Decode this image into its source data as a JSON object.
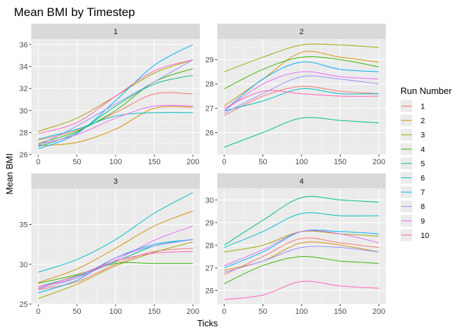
{
  "title": "Mean BMI by Timestep",
  "xlabel": "Ticks",
  "ylabel": "Mean BMI",
  "legend": {
    "title": "Run Number",
    "entries": [
      "1",
      "2",
      "3",
      "4",
      "5",
      "6",
      "7",
      "8",
      "9",
      "10"
    ],
    "colors": [
      "#F8766D",
      "#D89000",
      "#A3A500",
      "#39B600",
      "#00BF7D",
      "#00BFC4",
      "#00B0F6",
      "#9590FF",
      "#E76BF3",
      "#FF62BC"
    ]
  },
  "chart_data": {
    "type": "line",
    "facets": [
      {
        "label": "1",
        "xlim": [
          -9,
          209
        ],
        "ylim": [
          26,
          36.5
        ],
        "x_ticks": [
          "0",
          "50",
          "100",
          "150",
          "200"
        ],
        "y_ticks": [
          "26",
          "28",
          "30",
          "32",
          "34",
          "36"
        ],
        "x": [
          0,
          50,
          100,
          150,
          200
        ],
        "series": [
          {
            "values": [
              27.3,
              28.2,
              29.8,
              31.5,
              31.5
            ]
          },
          {
            "values": [
              26.8,
              27.1,
              28.3,
              30.2,
              30.3
            ]
          },
          {
            "values": [
              28.1,
              29.3,
              31.3,
              33.4,
              34.6
            ]
          },
          {
            "values": [
              27.0,
              28.1,
              30.0,
              32.6,
              33.8
            ]
          },
          {
            "values": [
              26.7,
              28.0,
              30.4,
              32.4,
              33.2
            ]
          },
          {
            "values": [
              27.4,
              28.3,
              29.5,
              29.8,
              29.8
            ]
          },
          {
            "values": [
              26.5,
              27.9,
              30.9,
              34.1,
              36.0
            ]
          },
          {
            "values": [
              26.8,
              28.6,
              30.6,
              32.6,
              34.6
            ]
          },
          {
            "values": [
              26.9,
              27.8,
              29.3,
              30.4,
              30.4
            ]
          },
          {
            "values": [
              27.9,
              28.9,
              31.3,
              33.6,
              34.6
            ]
          }
        ]
      },
      {
        "label": "2",
        "xlim": [
          -9,
          209
        ],
        "ylim": [
          25.1,
          29.85
        ],
        "x_ticks": [
          "0",
          "50",
          "100",
          "150",
          "200"
        ],
        "y_ticks": [
          "26",
          "27",
          "28",
          "29"
        ],
        "x": [
          0,
          50,
          100,
          150,
          200
        ],
        "series": [
          {
            "values": [
              26.7,
              27.5,
              27.9,
              27.7,
              27.6
            ]
          },
          {
            "values": [
              27.1,
              28.2,
              29.3,
              29.1,
              28.9
            ]
          },
          {
            "values": [
              28.5,
              29.1,
              29.6,
              29.6,
              29.5
            ]
          },
          {
            "values": [
              27.8,
              28.6,
              29.1,
              29.0,
              28.7
            ]
          },
          {
            "values": [
              25.4,
              26.0,
              26.6,
              26.5,
              26.4
            ]
          },
          {
            "values": [
              26.9,
              27.3,
              27.8,
              27.6,
              27.6
            ]
          },
          {
            "values": [
              26.9,
              28.2,
              28.9,
              28.6,
              28.5
            ]
          },
          {
            "values": [
              26.8,
              27.6,
              28.3,
              28.2,
              28.0
            ]
          },
          {
            "values": [
              26.9,
              28.0,
              28.5,
              28.3,
              28.2
            ]
          },
          {
            "values": [
              27.0,
              27.7,
              27.6,
              27.5,
              27.5
            ]
          }
        ]
      },
      {
        "label": "3",
        "xlim": [
          -9,
          209
        ],
        "ylim": [
          25,
          39.5
        ],
        "x_ticks": [
          "0",
          "50",
          "100",
          "150",
          "200"
        ],
        "y_ticks": [
          "25",
          "30",
          "35"
        ],
        "x": [
          0,
          50,
          100,
          150,
          200
        ],
        "series": [
          {
            "values": [
              26.8,
              27.8,
              30.0,
              31.6,
              32.0
            ]
          },
          {
            "values": [
              27.7,
              29.4,
              32.0,
              34.8,
              36.7
            ]
          },
          {
            "values": [
              25.7,
              27.5,
              29.8,
              31.5,
              32.8
            ]
          },
          {
            "values": [
              27.6,
              28.7,
              30.1,
              30.1,
              30.1
            ]
          },
          {
            "values": [
              27.2,
              28.5,
              30.3,
              32.3,
              33.1
            ]
          },
          {
            "values": [
              29.0,
              30.6,
              33.1,
              36.4,
              39.0
            ]
          },
          {
            "values": [
              26.4,
              28.0,
              30.8,
              32.5,
              33.1
            ]
          },
          {
            "values": [
              26.9,
              28.3,
              30.8,
              32.3,
              33.1
            ]
          },
          {
            "values": [
              27.2,
              28.3,
              30.5,
              33.0,
              34.8
            ]
          },
          {
            "values": [
              27.0,
              28.6,
              30.4,
              31.4,
              31.6
            ]
          }
        ]
      },
      {
        "label": "4",
        "xlim": [
          -9,
          209
        ],
        "ylim": [
          25.4,
          30.5
        ],
        "x_ticks": [
          "0",
          "50",
          "100",
          "150",
          "200"
        ],
        "y_ticks": [
          "26",
          "27",
          "28",
          "29",
          "30"
        ],
        "x": [
          0,
          50,
          100,
          150,
          200
        ],
        "series": [
          {
            "values": [
              26.7,
              27.5,
              28.3,
              28.1,
              27.9
            ]
          },
          {
            "values": [
              26.9,
              27.3,
              28.1,
              28.0,
              27.7
            ]
          },
          {
            "values": [
              27.7,
              28.0,
              28.6,
              28.5,
              28.4
            ]
          },
          {
            "values": [
              26.3,
              27.1,
              27.5,
              27.3,
              27.2
            ]
          },
          {
            "values": [
              28.0,
              29.1,
              30.1,
              30.0,
              29.9
            ]
          },
          {
            "values": [
              27.9,
              28.6,
              29.4,
              29.3,
              29.3
            ]
          },
          {
            "values": [
              27.0,
              27.7,
              28.6,
              28.6,
              28.5
            ]
          },
          {
            "values": [
              26.8,
              27.3,
              27.9,
              27.9,
              27.7
            ]
          },
          {
            "values": [
              27.1,
              27.8,
              28.6,
              28.5,
              28.1
            ]
          },
          {
            "values": [
              25.6,
              25.8,
              26.4,
              26.2,
              26.1
            ]
          }
        ]
      }
    ]
  }
}
